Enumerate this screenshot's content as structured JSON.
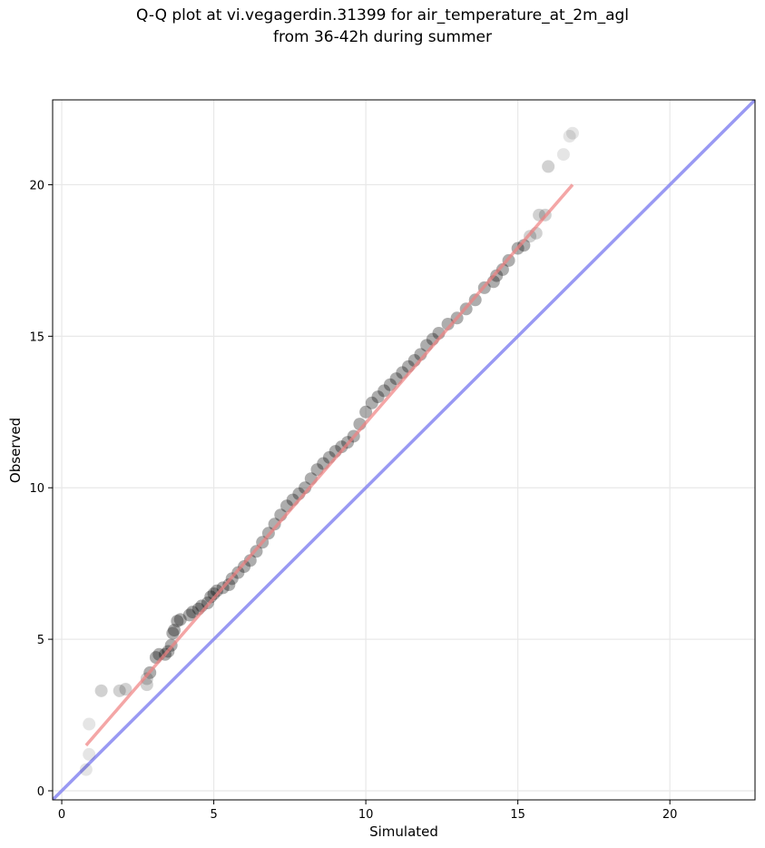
{
  "chart_data": {
    "type": "scatter",
    "title_line1": "Q-Q plot at vi.vegagerdin.31399 for air_temperature_at_2m_agl",
    "title_line2": "from 36-42h during summer",
    "xlabel": "Simulated",
    "ylabel": "Observed",
    "xlim": [
      -0.3,
      22.8
    ],
    "ylim": [
      -0.3,
      22.8
    ],
    "xticks": [
      0,
      5,
      10,
      15,
      20
    ],
    "yticks": [
      0,
      5,
      10,
      15,
      20
    ],
    "grid": true,
    "colors": {
      "points": "#000000",
      "fit_line": "#f08080",
      "identity_line": "#8080f0",
      "grid": "#e8e8e8"
    },
    "fit_line": {
      "x": [
        0.8,
        16.8
      ],
      "y": [
        1.5,
        20.0
      ]
    },
    "identity_line": {
      "x": [
        -0.3,
        22.8
      ],
      "y": [
        -0.3,
        22.8
      ]
    },
    "points": [
      [
        0.8,
        0.7
      ],
      [
        0.9,
        1.2
      ],
      [
        0.9,
        2.2
      ],
      [
        1.3,
        3.3
      ],
      [
        1.9,
        3.3
      ],
      [
        2.1,
        3.35
      ],
      [
        2.8,
        3.5
      ],
      [
        2.8,
        3.7
      ],
      [
        2.9,
        3.9
      ],
      [
        3.1,
        4.4
      ],
      [
        3.2,
        4.5
      ],
      [
        3.4,
        4.5
      ],
      [
        3.5,
        4.6
      ],
      [
        3.6,
        4.8
      ],
      [
        3.65,
        5.2
      ],
      [
        3.7,
        5.3
      ],
      [
        3.8,
        5.6
      ],
      [
        3.9,
        5.65
      ],
      [
        4.2,
        5.8
      ],
      [
        4.3,
        5.9
      ],
      [
        4.5,
        6.0
      ],
      [
        4.6,
        6.1
      ],
      [
        4.8,
        6.2
      ],
      [
        4.9,
        6.4
      ],
      [
        5.0,
        6.5
      ],
      [
        5.1,
        6.6
      ],
      [
        5.3,
        6.7
      ],
      [
        5.5,
        6.8
      ],
      [
        5.6,
        7.0
      ],
      [
        5.8,
        7.2
      ],
      [
        6.0,
        7.4
      ],
      [
        6.2,
        7.6
      ],
      [
        6.4,
        7.9
      ],
      [
        6.6,
        8.2
      ],
      [
        6.8,
        8.5
      ],
      [
        7.0,
        8.8
      ],
      [
        7.2,
        9.1
      ],
      [
        7.4,
        9.4
      ],
      [
        7.6,
        9.6
      ],
      [
        7.8,
        9.8
      ],
      [
        8.0,
        10.0
      ],
      [
        8.2,
        10.3
      ],
      [
        8.4,
        10.6
      ],
      [
        8.6,
        10.8
      ],
      [
        8.8,
        11.0
      ],
      [
        9.0,
        11.2
      ],
      [
        9.2,
        11.35
      ],
      [
        9.4,
        11.5
      ],
      [
        9.6,
        11.7
      ],
      [
        9.8,
        12.1
      ],
      [
        10.0,
        12.5
      ],
      [
        10.2,
        12.8
      ],
      [
        10.4,
        13.0
      ],
      [
        10.6,
        13.2
      ],
      [
        10.8,
        13.4
      ],
      [
        11.0,
        13.6
      ],
      [
        11.2,
        13.8
      ],
      [
        11.4,
        14.0
      ],
      [
        11.6,
        14.2
      ],
      [
        11.8,
        14.4
      ],
      [
        12.0,
        14.7
      ],
      [
        12.2,
        14.9
      ],
      [
        12.4,
        15.1
      ],
      [
        12.7,
        15.4
      ],
      [
        13.0,
        15.6
      ],
      [
        13.3,
        15.9
      ],
      [
        13.6,
        16.2
      ],
      [
        13.9,
        16.6
      ],
      [
        14.2,
        16.8
      ],
      [
        14.3,
        17.0
      ],
      [
        14.5,
        17.2
      ],
      [
        14.7,
        17.5
      ],
      [
        15.0,
        17.9
      ],
      [
        15.2,
        18.0
      ],
      [
        15.4,
        18.3
      ],
      [
        15.6,
        18.4
      ],
      [
        15.7,
        19.0
      ],
      [
        15.9,
        19.0
      ],
      [
        16.0,
        20.6
      ],
      [
        16.5,
        21.0
      ],
      [
        16.7,
        21.6
      ],
      [
        16.8,
        21.7
      ]
    ]
  }
}
